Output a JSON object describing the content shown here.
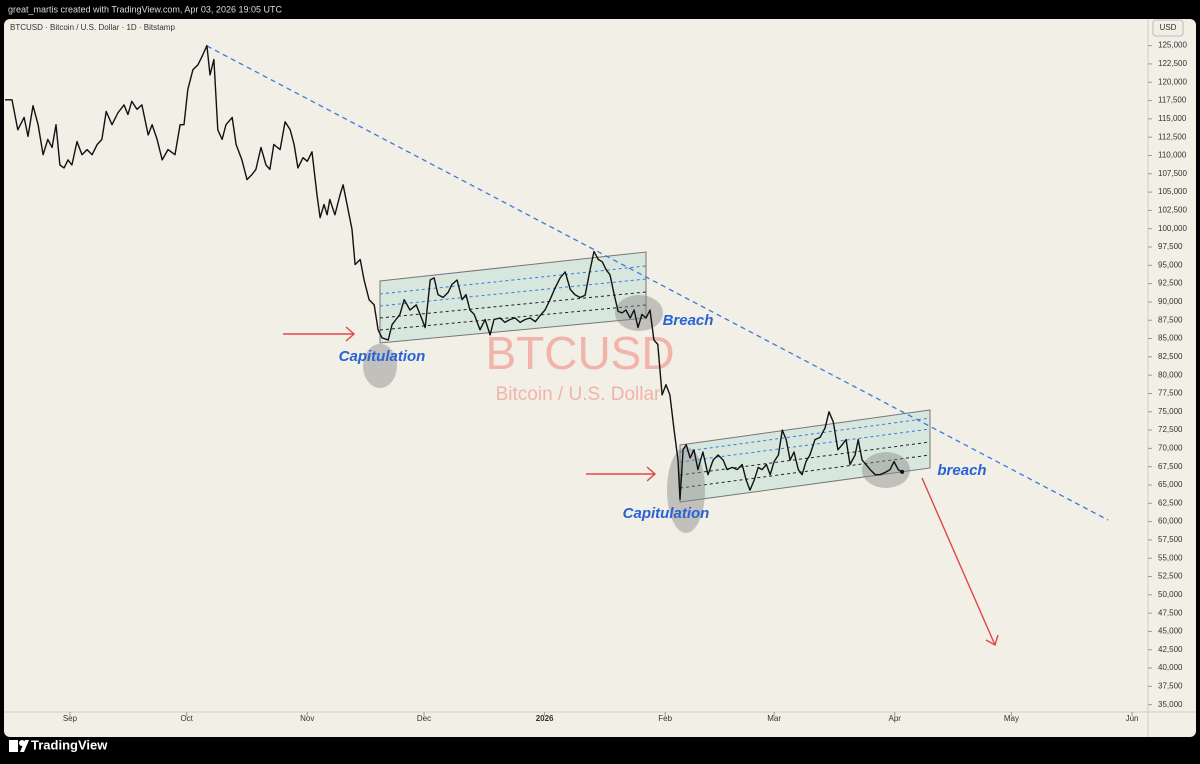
{
  "header": {
    "credit": "great_martis created with TradingView.com, Apr 03, 2026 19:05 UTC",
    "symbol": "BTCUSD · Bitcoin / U.S. Dollar · 1D · Bitstamp",
    "currency": "USD",
    "brand": "TradingView"
  },
  "watermark": {
    "symbol": "BTCUSD",
    "name": "Bitcoin / U.S. Dollar"
  },
  "annotations": [
    "Capitulation",
    "Breach",
    "Capitulation",
    "breach"
  ],
  "chart_data": {
    "type": "line",
    "color": "#111111",
    "grid": false,
    "xlim": [
      14.3,
      308.1
    ],
    "ylim": [
      34000,
      128500
    ],
    "xticks": [
      {
        "value": 31,
        "label": "Sep"
      },
      {
        "value": 61,
        "label": "Oct"
      },
      {
        "value": 92,
        "label": "Nov"
      },
      {
        "value": 122,
        "label": "Dec"
      },
      {
        "value": 153,
        "label": "2026"
      },
      {
        "value": 184,
        "label": "Feb"
      },
      {
        "value": 212,
        "label": "Mar"
      },
      {
        "value": 243,
        "label": "Apr"
      },
      {
        "value": 273,
        "label": "May"
      },
      {
        "value": 304,
        "label": "Jun"
      }
    ],
    "yticks": [
      {
        "value": 35000,
        "label": "35,000"
      },
      {
        "value": 37500,
        "label": "37,500"
      },
      {
        "value": 40000,
        "label": "40,000"
      },
      {
        "value": 42500,
        "label": "42,500"
      },
      {
        "value": 45000,
        "label": "45,000"
      },
      {
        "value": 47500,
        "label": "47,500"
      },
      {
        "value": 50000,
        "label": "50,000"
      },
      {
        "value": 52500,
        "label": "52,500"
      },
      {
        "value": 55000,
        "label": "55,000"
      },
      {
        "value": 57500,
        "label": "57,500"
      },
      {
        "value": 60000,
        "label": "60,000"
      },
      {
        "value": 62500,
        "label": "62,500"
      },
      {
        "value": 65000,
        "label": "65,000"
      },
      {
        "value": 67500,
        "label": "67,500"
      },
      {
        "value": 70000,
        "label": "70,000"
      },
      {
        "value": 72500,
        "label": "72,500"
      },
      {
        "value": 75000,
        "label": "75,000"
      },
      {
        "value": 77500,
        "label": "77,500"
      },
      {
        "value": 80000,
        "label": "80,000"
      },
      {
        "value": 82500,
        "label": "82,500"
      },
      {
        "value": 85000,
        "label": "85,000"
      },
      {
        "value": 87500,
        "label": "87,500"
      },
      {
        "value": 90000,
        "label": "90,000"
      },
      {
        "value": 92500,
        "label": "92,500"
      },
      {
        "value": 95000,
        "label": "95,000"
      },
      {
        "value": 97500,
        "label": "97,500"
      },
      {
        "value": 100000,
        "label": "100,000"
      },
      {
        "value": 102500,
        "label": "102,500"
      },
      {
        "value": 105000,
        "label": "105,000"
      },
      {
        "value": 107500,
        "label": "107,500"
      },
      {
        "value": 110000,
        "label": "110,000"
      },
      {
        "value": 112500,
        "label": "112,500"
      },
      {
        "value": 115000,
        "label": "115,000"
      },
      {
        "value": 117500,
        "label": "117,500"
      },
      {
        "value": 120000,
        "label": "120,000"
      },
      {
        "value": 122500,
        "label": "122,500"
      },
      {
        "value": 125000,
        "label": "125,000"
      }
    ],
    "x": [
      14.3,
      16.1,
      17.6,
      19.2,
      20.2,
      21.5,
      22.8,
      24.1,
      25.3,
      26.4,
      27.4,
      28.4,
      29.5,
      30.5,
      31.5,
      32.8,
      34.1,
      35.4,
      36.7,
      38.0,
      39.2,
      40.3,
      41.8,
      43.3,
      44.9,
      45.9,
      46.9,
      48.2,
      49.5,
      51.1,
      52.1,
      53.4,
      54.7,
      56.2,
      58.0,
      59.3,
      60.3,
      61.3,
      62.6,
      63.9,
      65.2,
      66.2,
      67.0,
      68.0,
      69.0,
      70.1,
      71.1,
      72.7,
      73.7,
      75.2,
      76.5,
      77.8,
      78.8,
      80.1,
      81.4,
      82.4,
      83.4,
      85.0,
      86.3,
      87.6,
      88.6,
      89.6,
      90.9,
      92.0,
      93.2,
      94.5,
      95.3,
      96.3,
      97.1,
      97.8,
      99.1,
      100.4,
      101.2,
      102.5,
      103.5,
      104.3,
      105.6,
      106.6,
      107.9,
      109.2,
      110.2,
      111.2,
      112.8,
      113.8,
      114.8,
      115.8,
      116.9,
      118.4,
      120.0,
      121.5,
      122.3,
      123.6,
      124.6,
      125.6,
      126.9,
      128.2,
      129.2,
      130.5,
      131.8,
      132.8,
      133.8,
      134.9,
      136.4,
      137.7,
      139.0,
      140.0,
      141.6,
      142.8,
      144.1,
      145.4,
      146.7,
      148.0,
      149.3,
      150.6,
      151.8,
      153.1,
      154.4,
      155.7,
      157.0,
      158.3,
      159.6,
      160.8,
      162.1,
      163.4,
      164.7,
      165.7,
      166.8,
      167.8,
      168.8,
      169.8,
      170.9,
      171.9,
      172.9,
      173.9,
      175.0,
      176.0,
      177.0,
      178.0,
      179.1,
      180.1,
      181.1,
      182.1,
      183.2,
      184.2,
      185.2,
      186.3,
      187.3,
      187.8,
      188.6,
      189.4,
      190.4,
      191.4,
      192.4,
      193.7,
      195.0,
      196.3,
      197.6,
      198.9,
      199.9,
      201.2,
      202.5,
      203.8,
      204.8,
      205.8,
      206.9,
      207.9,
      208.9,
      210.0,
      211.0,
      212.0,
      213.1,
      214.1,
      215.1,
      216.1,
      217.1,
      218.2,
      219.2,
      220.2,
      221.2,
      222.5,
      223.8,
      225.1,
      226.1,
      227.2,
      228.4,
      229.5,
      230.5,
      231.5,
      232.8,
      233.6,
      234.6,
      235.6,
      236.7,
      238.0,
      239.2,
      240.5,
      241.8,
      242.8,
      243.9,
      244.9
    ],
    "values": [
      117600,
      117600,
      113500,
      115200,
      112600,
      116800,
      114200,
      110100,
      112200,
      111100,
      114200,
      108700,
      108300,
      109400,
      108700,
      111900,
      110100,
      110800,
      110100,
      111500,
      112200,
      116000,
      114200,
      115800,
      116900,
      115600,
      117400,
      116300,
      116900,
      112800,
      114200,
      112200,
      109400,
      110800,
      110100,
      114200,
      114200,
      119000,
      121700,
      122400,
      123800,
      125000,
      121000,
      123100,
      113500,
      112200,
      114200,
      115200,
      111500,
      109400,
      106700,
      107400,
      108100,
      111100,
      108700,
      108100,
      111500,
      110800,
      114600,
      113500,
      111500,
      108300,
      109700,
      109200,
      110500,
      104600,
      101500,
      103300,
      101900,
      104000,
      101900,
      104600,
      106000,
      102600,
      99900,
      95100,
      95800,
      93000,
      90300,
      89600,
      86200,
      85100,
      84800,
      86900,
      87600,
      88300,
      90300,
      88900,
      89600,
      87600,
      86500,
      93000,
      93300,
      91000,
      90600,
      91300,
      92400,
      93000,
      90300,
      91000,
      88900,
      88300,
      86200,
      87600,
      85500,
      87600,
      87800,
      87200,
      87600,
      87800,
      87200,
      87600,
      87800,
      87300,
      88100,
      88900,
      90300,
      91900,
      93300,
      94100,
      91700,
      91000,
      90600,
      90900,
      94400,
      96900,
      95800,
      95500,
      94400,
      93700,
      91000,
      88700,
      88500,
      88900,
      87800,
      88900,
      86500,
      88300,
      87800,
      88900,
      84800,
      84200,
      77300,
      78700,
      77300,
      72500,
      68400,
      63000,
      69800,
      70500,
      68700,
      69800,
      67100,
      69500,
      66400,
      68400,
      69100,
      68400,
      67100,
      67400,
      67100,
      67800,
      65700,
      64300,
      65700,
      67400,
      67100,
      67800,
      66400,
      68200,
      69100,
      72500,
      71200,
      68400,
      69500,
      67100,
      66400,
      68200,
      69100,
      71200,
      71500,
      72800,
      75000,
      73600,
      69800,
      70500,
      71200,
      67800,
      69100,
      71200,
      68400,
      67800,
      67100,
      66400,
      66400,
      66700,
      67100,
      68200,
      67100,
      66800
    ]
  }
}
